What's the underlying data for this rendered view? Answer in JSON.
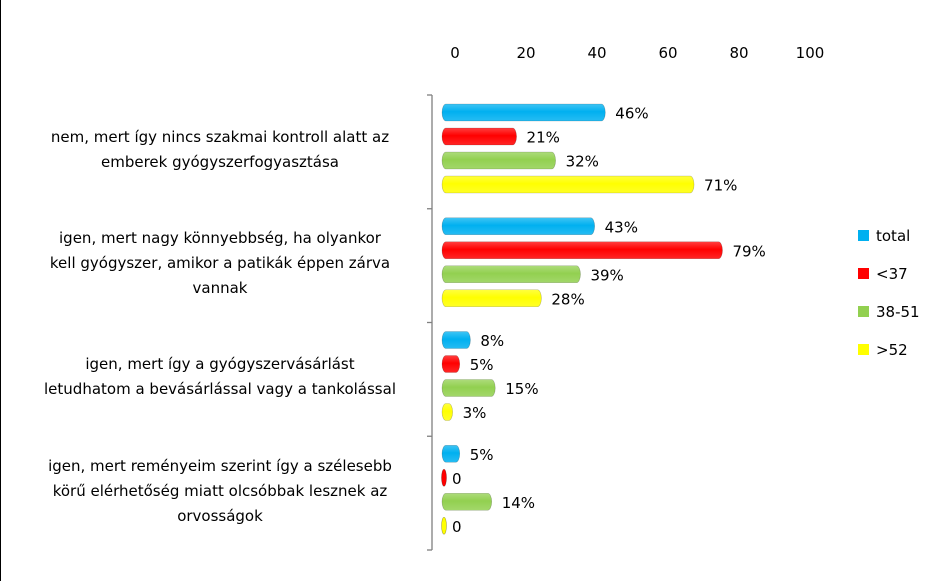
{
  "chart_data": {
    "type": "bar",
    "orientation": "horizontal",
    "x_ticks": [
      "0",
      "20",
      "40",
      "60",
      "80",
      "100"
    ],
    "xlim": [
      0,
      100
    ],
    "categories": [
      "nem, mert így nincs szakmai kontroll alatt az emberek gyógyszerfogyasztása",
      "igen, mert nagy könnyebbség, ha olyankor kell gyógyszer, amikor a patikák éppen zárva vannak",
      "igen, mert így a gyógyszervásárlást letudhatom a bevásárlással vagy a tankolással",
      "igen, mert reményeim szerint így a szélesebb körű elérhetőség miatt olcsóbbak lesznek az orvosságok"
    ],
    "series": [
      {
        "name": "total",
        "color": "#00b0f0",
        "values": [
          46,
          43,
          8,
          5
        ],
        "labels": [
          "46%",
          "43%",
          "8%",
          "5%"
        ]
      },
      {
        "name": "<37",
        "color": "#ff0000",
        "values": [
          21,
          79,
          5,
          0
        ],
        "labels": [
          "21%",
          "79%",
          "5%",
          "0"
        ]
      },
      {
        "name": "38-51",
        "color": "#92d050",
        "values": [
          32,
          39,
          15,
          14
        ],
        "labels": [
          "32%",
          "39%",
          "15%",
          "14%"
        ]
      },
      {
        "name": ">52",
        "color": "#ffff00",
        "values": [
          71,
          28,
          3,
          0
        ],
        "labels": [
          "71%",
          "28%",
          "3%",
          "0"
        ]
      }
    ],
    "legend_position": "right",
    "grid": false
  },
  "category_lines": [
    [
      "nem, mert így nincs szakmai kontroll alatt az",
      "emberek gyógyszerfogyasztása"
    ],
    [
      "igen, mert nagy könnyebbség, ha olyankor",
      "kell gyógyszer, amikor a patikák éppen zárva",
      "vannak"
    ],
    [
      "igen, mert így a gyógyszervásárlást",
      "letudhatom a bevásárlással vagy a tankolással"
    ],
    [
      "igen, mert reményeim szerint így a szélesebb",
      "körű elérhetőség miatt olcsóbbak lesznek az",
      "orvosságok"
    ]
  ]
}
